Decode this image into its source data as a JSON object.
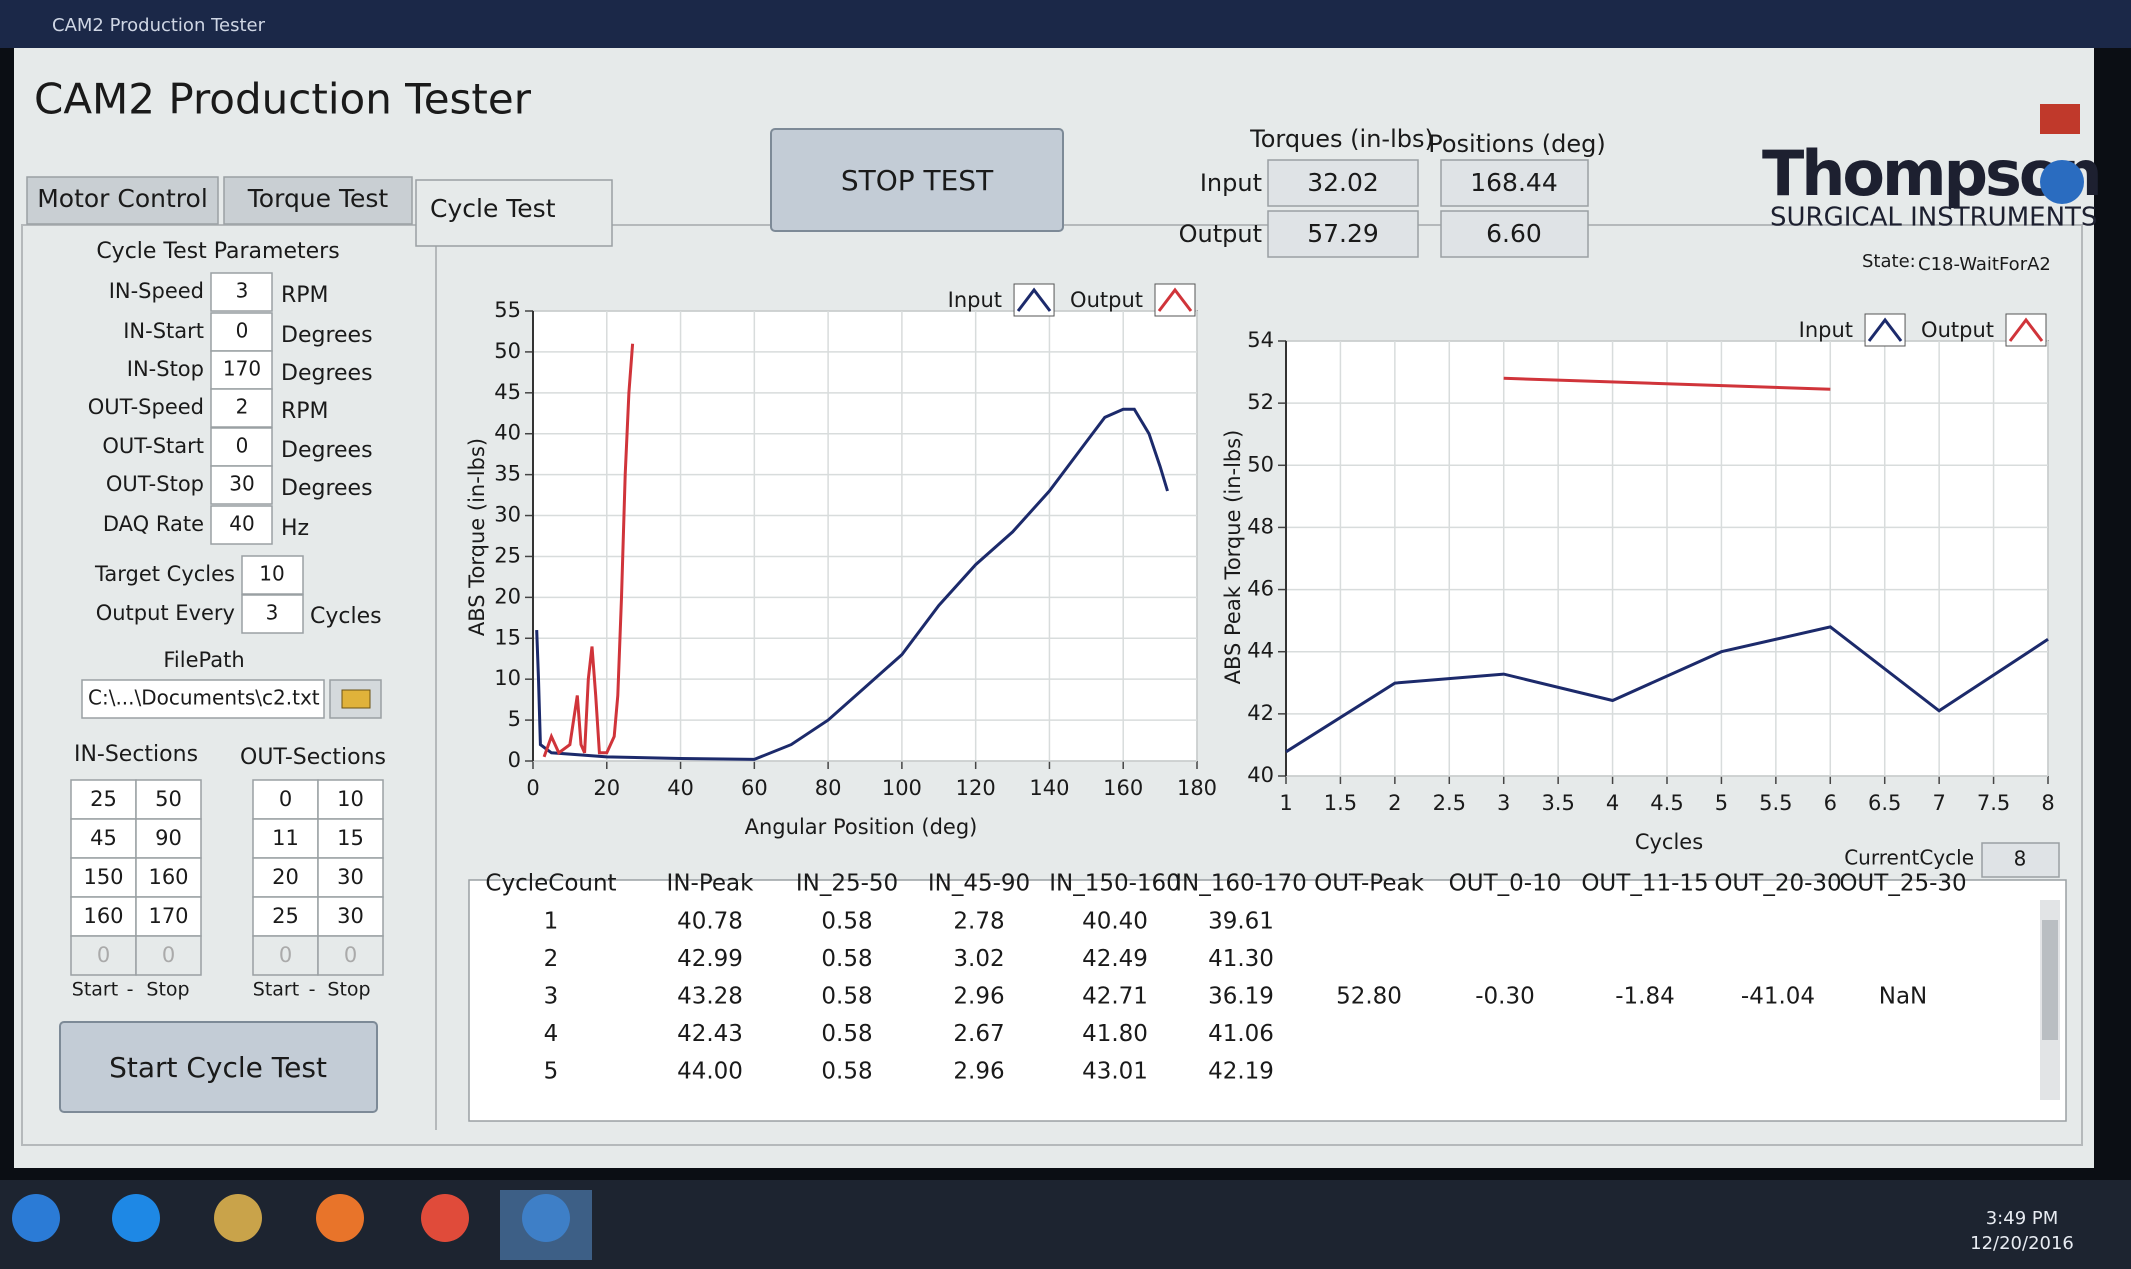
{
  "window_title": "CAM2 Production Tester",
  "app_title": "CAM2 Production Tester",
  "tabs": [
    "Motor Control",
    "Torque Test",
    "Cycle Test"
  ],
  "active_tab": 2,
  "stop_button": "STOP TEST",
  "readouts": {
    "torque_header": "Torques (in-lbs)",
    "position_header": "Positions (deg)",
    "rows": [
      {
        "label": "Input",
        "torque": "32.02",
        "position": "168.44"
      },
      {
        "label": "Output",
        "torque": "57.29",
        "position": "6.60"
      }
    ]
  },
  "logo": {
    "name": "Thompson",
    "tagline": "SURGICAL INSTRUMENTS"
  },
  "state": {
    "label": "State:",
    "value": "C18-WaitForA2"
  },
  "parameters": {
    "title": "Cycle Test Parameters",
    "rows": [
      {
        "label": "IN-Speed",
        "value": "3",
        "unit": "RPM"
      },
      {
        "label": "IN-Start",
        "value": "0",
        "unit": "Degrees"
      },
      {
        "label": "IN-Stop",
        "value": "170",
        "unit": "Degrees"
      },
      {
        "label": "OUT-Speed",
        "value": "2",
        "unit": "RPM"
      },
      {
        "label": "OUT-Start",
        "value": "0",
        "unit": "Degrees"
      },
      {
        "label": "OUT-Stop",
        "value": "30",
        "unit": "Degrees"
      },
      {
        "label": "DAQ Rate",
        "value": "40",
        "unit": "Hz"
      }
    ],
    "target": {
      "label": "Target Cycles",
      "value": "10"
    },
    "output_every": {
      "label": "Output Every",
      "value": "3",
      "unit": "Cycles"
    }
  },
  "file_path": {
    "label": "FilePath",
    "value": "C:\\...\\Documents\\c2.txt"
  },
  "sections": {
    "in_title": "IN-Sections",
    "out_title": "OUT-Sections",
    "in_rows": [
      [
        "25",
        "50"
      ],
      [
        "45",
        "90"
      ],
      [
        "150",
        "160"
      ],
      [
        "160",
        "170"
      ],
      [
        "0",
        "0"
      ]
    ],
    "out_rows": [
      [
        "0",
        "10"
      ],
      [
        "11",
        "15"
      ],
      [
        "20",
        "30"
      ],
      [
        "25",
        "30"
      ],
      [
        "0",
        "0"
      ]
    ],
    "footer": [
      "Start",
      "-",
      "Stop"
    ]
  },
  "start_button": "Start Cycle Test",
  "charts": [
    {
      "type": "line",
      "x_label": "Angular Position (deg)",
      "y_label": "ABS Torque (in-lbs)",
      "xlim": [
        0,
        180
      ],
      "xticks": [
        0,
        20,
        40,
        60,
        80,
        100,
        120,
        140,
        160,
        180
      ],
      "ylim": [
        0,
        55
      ],
      "yticks": [
        0,
        5,
        10,
        15,
        20,
        25,
        30,
        35,
        40,
        45,
        50,
        55
      ],
      "grid": true,
      "series": [
        {
          "name": "Input",
          "color": "#1c2a6b",
          "x": [
            1,
            1.5,
            2,
            5,
            20,
            40,
            60,
            70,
            80,
            90,
            100,
            110,
            120,
            130,
            140,
            150,
            155,
            160,
            163,
            167,
            170,
            172
          ],
          "values": [
            16,
            10,
            2,
            1,
            0.5,
            0.3,
            0.2,
            2,
            5,
            9,
            13,
            19,
            24,
            28,
            33,
            39,
            42,
            43,
            43,
            40,
            36,
            33
          ]
        },
        {
          "name": "Output",
          "color": "#d0343a",
          "x": [
            3,
            5,
            7,
            10,
            12,
            13,
            14,
            15,
            16,
            17,
            18,
            20,
            22,
            23,
            24,
            25,
            26,
            27
          ],
          "values": [
            0.5,
            3,
            1,
            2,
            8,
            2,
            1,
            10,
            14,
            8,
            1,
            1,
            3,
            8,
            20,
            35,
            45,
            51
          ]
        }
      ]
    },
    {
      "type": "line",
      "x_label": "Cycles",
      "y_label": "ABS Peak Torque (in-lbs)",
      "xlim": [
        1,
        8
      ],
      "xticks": [
        1,
        1.5,
        2,
        2.5,
        3,
        3.5,
        4,
        4.5,
        5,
        5.5,
        6,
        6.5,
        7,
        7.5,
        8
      ],
      "ylim": [
        40,
        54
      ],
      "yticks": [
        40,
        42,
        44,
        46,
        48,
        50,
        52,
        54
      ],
      "grid": true,
      "series": [
        {
          "name": "Input",
          "color": "#1c2a6b",
          "x": [
            1,
            2,
            3,
            4,
            5,
            6,
            7,
            8
          ],
          "values": [
            40.78,
            42.99,
            43.28,
            42.43,
            44.0,
            44.8,
            42.1,
            44.4
          ]
        },
        {
          "name": "Output",
          "color": "#d0343a",
          "x": [
            3,
            6
          ],
          "values": [
            52.8,
            52.45
          ]
        }
      ]
    }
  ],
  "current_cycle": {
    "label": "CurrentCycle",
    "value": "8"
  },
  "table": {
    "columns": [
      "CycleCount",
      "IN-Peak",
      "IN_25-50",
      "IN_45-90",
      "IN_150-160",
      "IN_160-170",
      "OUT-Peak",
      "OUT_0-10",
      "OUT_11-15",
      "OUT_20-30",
      "OUT_25-30"
    ],
    "rows": [
      [
        "1",
        "40.78",
        "0.58",
        "2.78",
        "40.40",
        "39.61"
      ],
      [
        "2",
        "42.99",
        "0.58",
        "3.02",
        "42.49",
        "41.30"
      ],
      [
        "3",
        "43.28",
        "0.58",
        "2.96",
        "42.71",
        "36.19",
        "52.80",
        "-0.30",
        "-1.84",
        "-41.04",
        "NaN"
      ],
      [
        "4",
        "42.43",
        "0.58",
        "2.67",
        "41.80",
        "41.06"
      ],
      [
        "5",
        "44.00",
        "0.58",
        "2.96",
        "43.01",
        "42.19"
      ]
    ]
  },
  "taskbar": {
    "time": "3:49 PM",
    "date": "12/20/2016"
  }
}
